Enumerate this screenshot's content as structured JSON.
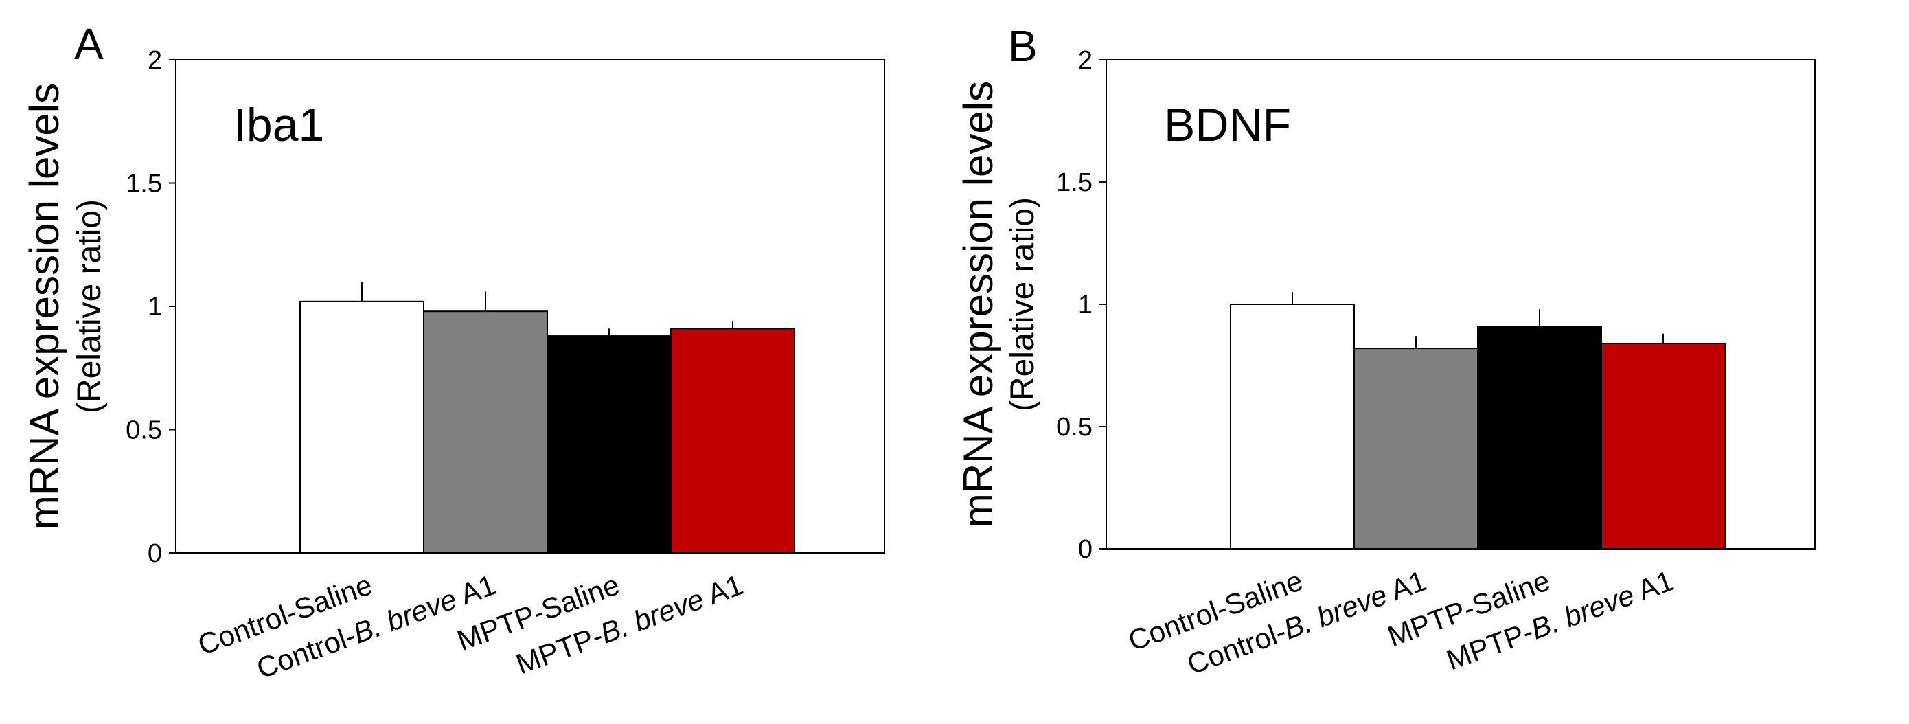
{
  "chart_data": [
    {
      "type": "bar",
      "panel_label": "A",
      "title": "Iba1",
      "ylabel": "mRNA expression levels",
      "ylabel_sub": "(Relative  ratio)",
      "ylim": [
        0,
        2
      ],
      "yticks": [
        "0",
        "0.5",
        "1",
        "1.5",
        "2"
      ],
      "yticks_values": [
        0,
        0.5,
        1,
        1.5,
        2
      ],
      "categories": [
        "Control-Saline",
        "Control-B. breve A1",
        "MPTP-Saline",
        "MPTP-B. breve A1"
      ],
      "values": [
        1.02,
        0.98,
        0.88,
        0.91
      ],
      "errors": [
        0.08,
        0.08,
        0.03,
        0.03
      ],
      "colors": [
        "#ffffff",
        "#808080",
        "#000000",
        "#c00000"
      ],
      "grid": false
    },
    {
      "type": "bar",
      "panel_label": "B",
      "title": "BDNF",
      "ylabel": "mRNA expression levels",
      "ylabel_sub": "(Relative  ratio)",
      "ylim": [
        0,
        2
      ],
      "yticks": [
        "0",
        "0.5",
        "1",
        "1.5",
        "2"
      ],
      "yticks_values": [
        0,
        0.5,
        1,
        1.5,
        2
      ],
      "categories": [
        "Control-Saline",
        "Control-B. breve A1",
        "MPTP-Saline",
        "MPTP-B. breve A1"
      ],
      "values": [
        1.0,
        0.82,
        0.91,
        0.84
      ],
      "errors": [
        0.05,
        0.05,
        0.07,
        0.04
      ],
      "colors": [
        "#ffffff",
        "#808080",
        "#000000",
        "#c00000"
      ],
      "grid": false
    }
  ]
}
